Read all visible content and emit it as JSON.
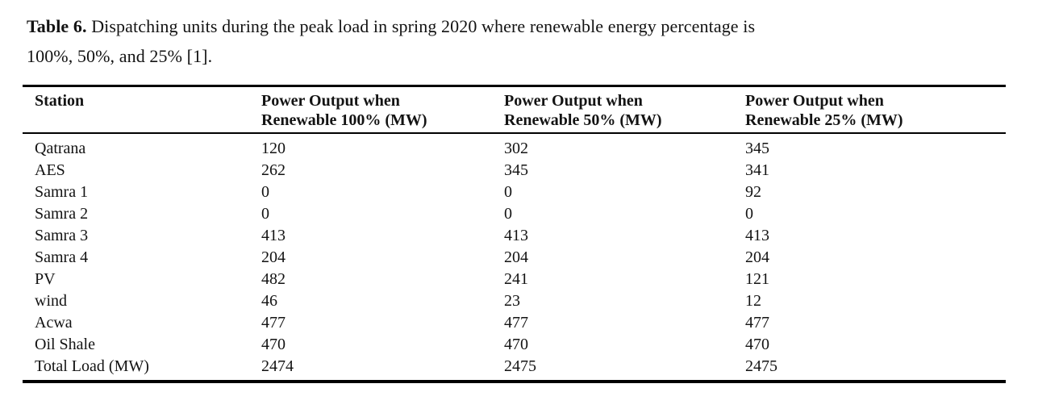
{
  "caption": {
    "label": "Table 6.",
    "line1": "Dispatching units during the peak load in spring 2020 where renewable energy percentage is",
    "line2": "100%, 50%, and 25% [1]."
  },
  "table": {
    "headers": [
      {
        "line1": "Station",
        "line2": ""
      },
      {
        "line1": "Power Output when",
        "line2": "Renewable 100% (MW)"
      },
      {
        "line1": "Power Output when",
        "line2": "Renewable 50% (MW)"
      },
      {
        "line1": "Power Output when",
        "line2": "Renewable 25% (MW)"
      }
    ],
    "rows": [
      [
        "Qatrana",
        "120",
        "302",
        "345"
      ],
      [
        "AES",
        "262",
        "345",
        "341"
      ],
      [
        "Samra 1",
        "0",
        "0",
        "92"
      ],
      [
        "Samra 2",
        "0",
        "0",
        "0"
      ],
      [
        "Samra 3",
        "413",
        "413",
        "413"
      ],
      [
        "Samra 4",
        "204",
        "204",
        "204"
      ],
      [
        "PV",
        "482",
        "241",
        "121"
      ],
      [
        "wind",
        "46",
        "23",
        "12"
      ],
      [
        "Acwa",
        "477",
        "477",
        "477"
      ],
      [
        "Oil Shale",
        "470",
        "470",
        "470"
      ],
      [
        "Total Load (MW)",
        "2474",
        "2475",
        "2475"
      ]
    ]
  },
  "chart_data": {
    "type": "table",
    "title": "Table 6. Dispatching units during the peak load in spring 2020 where renewable energy percentage is 100%, 50%, and 25% [1].",
    "columns": [
      "Station",
      "Power Output when Renewable 100% (MW)",
      "Power Output when Renewable 50% (MW)",
      "Power Output when Renewable 25% (MW)"
    ],
    "categories": [
      "Qatrana",
      "AES",
      "Samra 1",
      "Samra 2",
      "Samra 3",
      "Samra 4",
      "PV",
      "wind",
      "Acwa",
      "Oil Shale",
      "Total Load (MW)"
    ],
    "series": [
      {
        "name": "Power Output when Renewable 100% (MW)",
        "values": [
          120,
          262,
          0,
          0,
          413,
          204,
          482,
          46,
          477,
          470,
          2474
        ]
      },
      {
        "name": "Power Output when Renewable 50% (MW)",
        "values": [
          302,
          345,
          0,
          0,
          413,
          204,
          241,
          23,
          477,
          470,
          2475
        ]
      },
      {
        "name": "Power Output when Renewable 25% (MW)",
        "values": [
          345,
          341,
          92,
          0,
          413,
          204,
          121,
          12,
          477,
          470,
          2475
        ]
      }
    ]
  },
  "colors": {
    "text": "#131313",
    "border": "#000000",
    "background": "#ffffff"
  }
}
